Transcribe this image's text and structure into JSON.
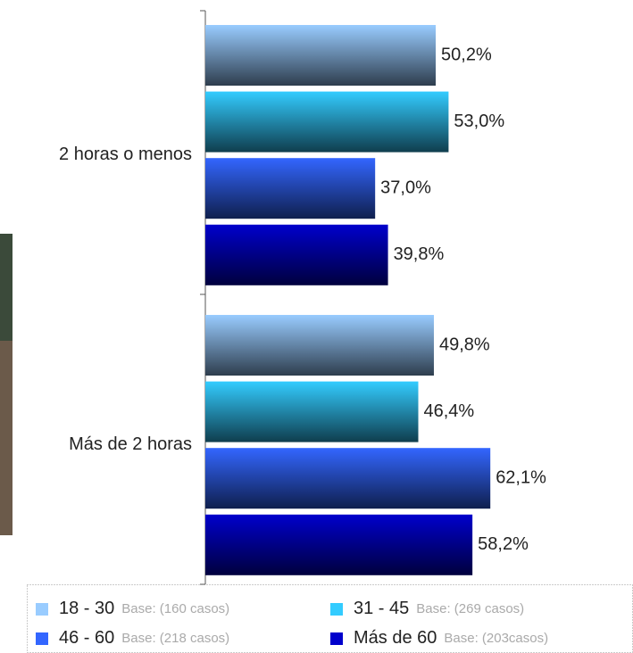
{
  "chart_data": {
    "type": "bar",
    "orientation": "horizontal",
    "categories": [
      "2 horas o menos",
      "Más de 2 horas"
    ],
    "series": [
      {
        "name": "18 - 30",
        "base": "Base: (160 casos)",
        "color": "#99ccff",
        "values": [
          50.2,
          49.8
        ],
        "value_labels": [
          "50,2%",
          "49,8%"
        ]
      },
      {
        "name": "31 - 45",
        "base": "Base: (269 casos)",
        "color": "#33ccff",
        "values": [
          53.0,
          46.4
        ],
        "value_labels": [
          "53,0%",
          "46,4%"
        ]
      },
      {
        "name": "46 - 60",
        "base": "Base: (218 casos)",
        "color": "#3366ff",
        "values": [
          37.0,
          62.1
        ],
        "value_labels": [
          "37,0%",
          "62,1%"
        ]
      },
      {
        "name": "Más de 60",
        "base": "Base: (203casos)",
        "color": "#0000cc",
        "values": [
          39.8,
          58.2
        ],
        "value_labels": [
          "39,8%",
          "58,2%"
        ]
      }
    ]
  }
}
